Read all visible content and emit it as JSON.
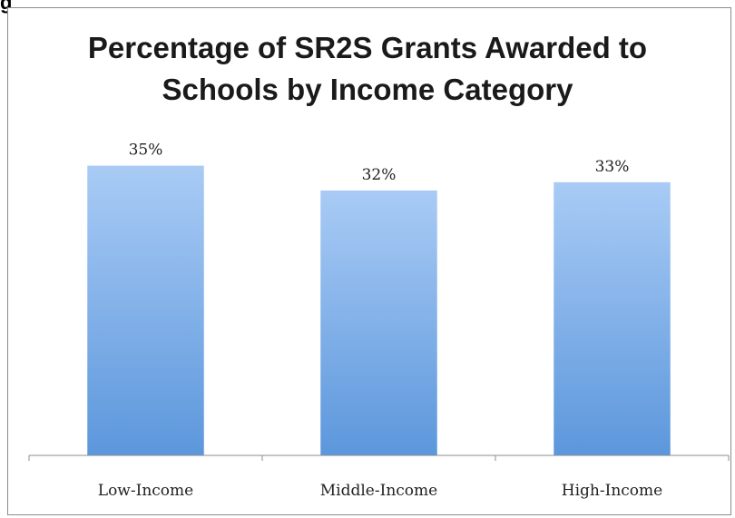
{
  "header": {
    "corner_text": "g"
  },
  "chart_data": {
    "type": "bar",
    "title_lines": [
      "Percentage of SR2S Grants Awarded to",
      "Schools by Income Category"
    ],
    "categories": [
      "Low-Income",
      "Middle-Income",
      "High-Income"
    ],
    "values": [
      35,
      32,
      33
    ],
    "data_labels": [
      "35%",
      "32%",
      "33%"
    ],
    "ylim": [
      0,
      40
    ],
    "colors": {
      "bar_top": "#a9cbf5",
      "bar_bottom": "#5c97dc",
      "axis": "#8c8c8c"
    },
    "grid": false,
    "legend": "none"
  }
}
